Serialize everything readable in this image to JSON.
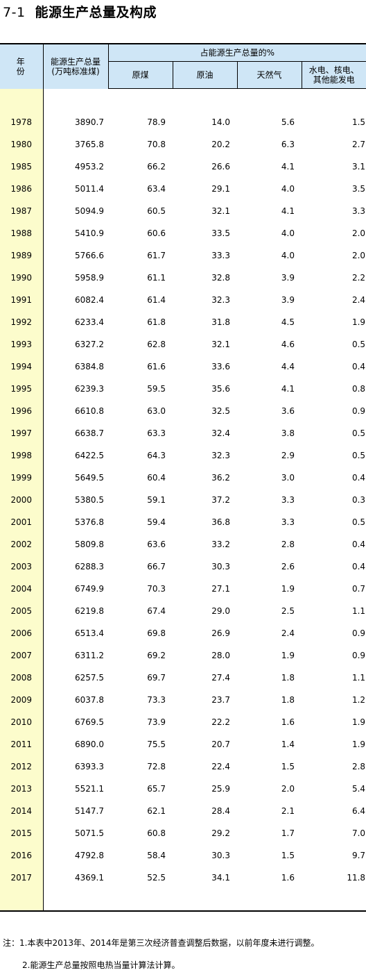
{
  "title": {
    "code": "7-1",
    "text": "能源生产总量及构成"
  },
  "table": {
    "headers": {
      "year": "年 份",
      "total": "能源生产总量",
      "total_unit": "(万吨标准煤)",
      "share_group": "占能源生产总量的%",
      "coal": "原煤",
      "crude_oil": "原油",
      "natural_gas": "天然气",
      "hydro_line1": "水电、核电、",
      "hydro_line2": "其他能发电"
    },
    "rows": [
      [
        "1978",
        "3890.7",
        "78.9",
        "14.0",
        "5.6",
        "1.5"
      ],
      [
        "1980",
        "3765.8",
        "70.8",
        "20.2",
        "6.3",
        "2.7"
      ],
      [
        "1985",
        "4953.2",
        "66.2",
        "26.6",
        "4.1",
        "3.1"
      ],
      [
        "1986",
        "5011.4",
        "63.4",
        "29.1",
        "4.0",
        "3.5"
      ],
      [
        "1987",
        "5094.9",
        "60.5",
        "32.1",
        "4.1",
        "3.3"
      ],
      [
        "1988",
        "5410.9",
        "60.6",
        "33.5",
        "4.0",
        "2.0"
      ],
      [
        "1989",
        "5766.6",
        "61.7",
        "33.3",
        "4.0",
        "2.0"
      ],
      [
        "1990",
        "5958.9",
        "61.1",
        "32.8",
        "3.9",
        "2.2"
      ],
      [
        "1991",
        "6082.4",
        "61.4",
        "32.3",
        "3.9",
        "2.4"
      ],
      [
        "1992",
        "6233.4",
        "61.8",
        "31.8",
        "4.5",
        "1.9"
      ],
      [
        "1993",
        "6327.2",
        "62.8",
        "32.1",
        "4.6",
        "0.5"
      ],
      [
        "1994",
        "6384.8",
        "61.6",
        "33.6",
        "4.4",
        "0.4"
      ],
      [
        "1995",
        "6239.3",
        "59.5",
        "35.6",
        "4.1",
        "0.8"
      ],
      [
        "1996",
        "6610.8",
        "63.0",
        "32.5",
        "3.6",
        "0.9"
      ],
      [
        "1997",
        "6638.7",
        "63.3",
        "32.4",
        "3.8",
        "0.5"
      ],
      [
        "1998",
        "6422.5",
        "64.3",
        "32.3",
        "2.9",
        "0.5"
      ],
      [
        "1999",
        "5649.5",
        "60.4",
        "36.2",
        "3.0",
        "0.4"
      ],
      [
        "2000",
        "5380.5",
        "59.1",
        "37.2",
        "3.3",
        "0.3"
      ],
      [
        "2001",
        "5376.8",
        "59.4",
        "36.8",
        "3.3",
        "0.5"
      ],
      [
        "2002",
        "5809.8",
        "63.6",
        "33.2",
        "2.8",
        "0.4"
      ],
      [
        "2003",
        "6288.3",
        "66.7",
        "30.3",
        "2.6",
        "0.4"
      ],
      [
        "2004",
        "6749.9",
        "70.3",
        "27.1",
        "1.9",
        "0.7"
      ],
      [
        "2005",
        "6219.8",
        "67.4",
        "29.0",
        "2.5",
        "1.1"
      ],
      [
        "2006",
        "6513.4",
        "69.8",
        "26.9",
        "2.4",
        "0.9"
      ],
      [
        "2007",
        "6311.2",
        "69.2",
        "28.0",
        "1.9",
        "0.9"
      ],
      [
        "2008",
        "6257.5",
        "69.7",
        "27.4",
        "1.8",
        "1.1"
      ],
      [
        "2009",
        "6037.8",
        "73.3",
        "23.7",
        "1.8",
        "1.2"
      ],
      [
        "2010",
        "6769.5",
        "73.9",
        "22.2",
        "1.6",
        "1.9"
      ],
      [
        "2011",
        "6890.0",
        "75.5",
        "20.7",
        "1.4",
        "1.9"
      ],
      [
        "2012",
        "6393.3",
        "72.8",
        "22.4",
        "1.5",
        "2.8"
      ],
      [
        "2013",
        "5521.1",
        "65.7",
        "25.9",
        "2.0",
        "5.4"
      ],
      [
        "2014",
        "5147.7",
        "62.1",
        "28.4",
        "2.1",
        "6.4"
      ],
      [
        "2015",
        "5071.5",
        "60.8",
        "29.2",
        "1.7",
        "7.0"
      ],
      [
        "2016",
        "4792.8",
        "58.4",
        "30.3",
        "1.5",
        "9.7"
      ],
      [
        "2017",
        "4369.1",
        "52.5",
        "34.1",
        "1.6",
        "11.8"
      ]
    ]
  },
  "notes": {
    "line1": "注：1.本表中2013年、2014年是第三次经济普查调整后数据，以前年度未进行调整。",
    "line2": "2.能源生产总量按照电热当量计算法计算。"
  }
}
